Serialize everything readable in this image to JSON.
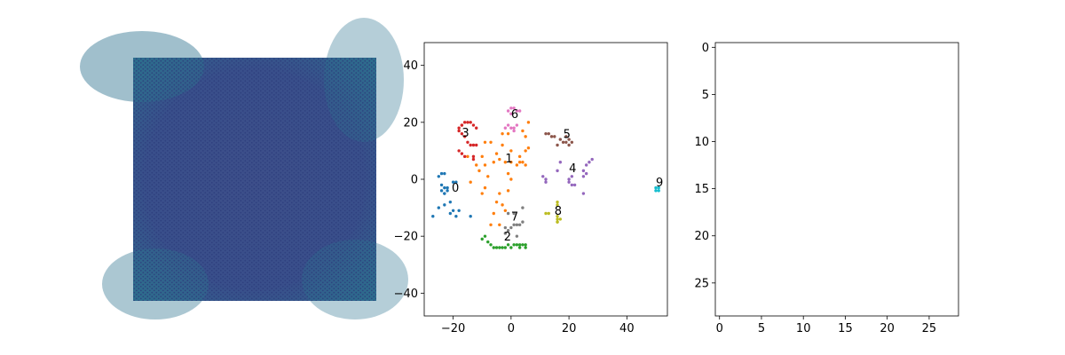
{
  "chart_data": [
    {
      "type": "image",
      "title": "",
      "axis": "off",
      "colormap": [
        "#3b528b",
        "#2c728e",
        "#21918c"
      ]
    },
    {
      "type": "scatter",
      "title": "",
      "xlabel": "",
      "ylabel": "",
      "xlim": [
        -30,
        54
      ],
      "ylim": [
        -48,
        48
      ],
      "xticks": [
        -20,
        0,
        20,
        40
      ],
      "yticks": [
        -40,
        -20,
        0,
        20,
        40
      ],
      "tick_labels_x": [
        "−20",
        "0",
        "20",
        "40"
      ],
      "tick_labels_y": [
        "−40",
        "−20",
        "0",
        "20",
        "40"
      ],
      "grid": false,
      "legend": "none",
      "series": [
        {
          "label": "0",
          "color": "#1f77b4",
          "label_pos": [
            -20.5,
            -4.3
          ],
          "points": [
            [
              -23,
              -3
            ],
            [
              -24,
              -2
            ],
            [
              -23,
              -5
            ],
            [
              -22,
              -4
            ],
            [
              -24,
              -4
            ],
            [
              -23,
              2
            ],
            [
              -25,
              1
            ],
            [
              -24,
              2
            ],
            [
              -20,
              -1
            ],
            [
              -19,
              -1
            ],
            [
              -21,
              -8
            ],
            [
              -20,
              -11
            ],
            [
              -21,
              -12
            ],
            [
              -19,
              -13
            ],
            [
              -18,
              -11
            ],
            [
              -23,
              -9
            ],
            [
              -25,
              -10
            ],
            [
              -27,
              -13
            ],
            [
              -14,
              -13
            ],
            [
              -23,
              -5
            ],
            [
              -22,
              -3
            ]
          ]
        },
        {
          "label": "1",
          "color": "#ff7f0e",
          "label_pos": [
            -2,
            6
          ],
          "points": [
            [
              0,
              6
            ],
            [
              2,
              5
            ],
            [
              4,
              6
            ],
            [
              5,
              5
            ],
            [
              3,
              6
            ],
            [
              -2,
              6
            ],
            [
              -4,
              7
            ],
            [
              -6,
              6
            ],
            [
              -9,
              5
            ],
            [
              -12,
              5
            ],
            [
              -10,
              8
            ],
            [
              -7,
              13
            ],
            [
              -3,
              12
            ],
            [
              -5,
              9
            ],
            [
              0,
              10
            ],
            [
              3,
              8
            ],
            [
              5,
              10
            ],
            [
              6,
              11
            ],
            [
              4,
              17
            ],
            [
              6,
              20
            ],
            [
              5,
              15
            ],
            [
              -1,
              16
            ],
            [
              -3,
              16
            ],
            [
              -9,
              13
            ],
            [
              -15,
              8
            ],
            [
              -11,
              3
            ],
            [
              -8,
              1
            ],
            [
              -1,
              2
            ],
            [
              0,
              0
            ],
            [
              -4,
              -5
            ],
            [
              -9,
              -3
            ],
            [
              -10,
              -5
            ],
            [
              -14,
              -1
            ],
            [
              -5,
              -8
            ],
            [
              -2,
              -11
            ],
            [
              -6,
              -12
            ],
            [
              -4,
              -16
            ],
            [
              -7,
              -16
            ],
            [
              -1,
              -4
            ],
            [
              -3,
              -9
            ]
          ]
        },
        {
          "label": "2",
          "color": "#2ca02c",
          "label_pos": [
            -2.5,
            -21.5
          ],
          "points": [
            [
              -9,
              -20
            ],
            [
              -10,
              -21
            ],
            [
              -8,
              -22
            ],
            [
              -7,
              -23
            ],
            [
              -5,
              -24
            ],
            [
              -4,
              -24
            ],
            [
              -3,
              -24
            ],
            [
              -1,
              -23
            ],
            [
              1,
              -23
            ],
            [
              2,
              -23
            ],
            [
              3,
              -24
            ],
            [
              4,
              -23
            ],
            [
              5,
              -23
            ],
            [
              5,
              -24
            ],
            [
              -2,
              -24
            ],
            [
              0,
              -24
            ],
            [
              -6,
              -24
            ],
            [
              3,
              -23
            ]
          ]
        },
        {
          "label": "3",
          "color": "#d62728",
          "label_pos": [
            -17,
            15
          ],
          "points": [
            [
              -17,
              19
            ],
            [
              -16,
              20
            ],
            [
              -14,
              20
            ],
            [
              -13,
              19
            ],
            [
              -18,
              18
            ],
            [
              -17,
              16
            ],
            [
              -16,
              15
            ],
            [
              -15,
              13
            ],
            [
              -14,
              12
            ],
            [
              -13,
              12
            ],
            [
              -12,
              12
            ],
            [
              -18,
              10
            ],
            [
              -17,
              9
            ],
            [
              -16,
              8
            ],
            [
              -13,
              8
            ],
            [
              -13,
              7
            ],
            [
              -17,
              19
            ],
            [
              -15,
              20
            ],
            [
              -18,
              17
            ],
            [
              -12,
              18
            ]
          ]
        },
        {
          "label": "4",
          "color": "#9467bd",
          "label_pos": [
            20,
            2.5
          ],
          "points": [
            [
              25,
              3
            ],
            [
              26,
              5
            ],
            [
              27,
              6
            ],
            [
              28,
              7
            ],
            [
              26,
              2
            ],
            [
              25,
              1
            ],
            [
              21,
              1
            ],
            [
              20,
              0
            ],
            [
              20,
              -1
            ],
            [
              21,
              -2
            ],
            [
              11,
              1
            ],
            [
              12,
              0
            ],
            [
              12,
              -1
            ],
            [
              16,
              3
            ],
            [
              17,
              6
            ],
            [
              25,
              -5
            ],
            [
              22,
              -2
            ]
          ]
        },
        {
          "label": "5",
          "color": "#8c564b",
          "label_pos": [
            18,
            14.5
          ],
          "points": [
            [
              12,
              16
            ],
            [
              13,
              16
            ],
            [
              14,
              15
            ],
            [
              15,
              15
            ],
            [
              17,
              14
            ],
            [
              18,
              13
            ],
            [
              19,
              13
            ],
            [
              20,
              12
            ],
            [
              20,
              14
            ],
            [
              19,
              15
            ],
            [
              16,
              12
            ],
            [
              21,
              13
            ]
          ]
        },
        {
          "label": "6",
          "color": "#e377c2",
          "label_pos": [
            0,
            21.5
          ],
          "points": [
            [
              0,
              25
            ],
            [
              1,
              25
            ],
            [
              2,
              24
            ],
            [
              3,
              24
            ],
            [
              -1,
              24
            ],
            [
              0,
              23
            ],
            [
              -1,
              19
            ],
            [
              0,
              18
            ],
            [
              1,
              18
            ],
            [
              -2,
              18
            ],
            [
              1,
              17
            ],
            [
              2,
              19
            ]
          ]
        },
        {
          "label": "7",
          "color": "#7f7f7f",
          "label_pos": [
            0,
            -14.5
          ],
          "points": [
            [
              -2,
              -19
            ],
            [
              -1,
              -18
            ],
            [
              0,
              -17
            ],
            [
              1,
              -16
            ],
            [
              2,
              -16
            ],
            [
              3,
              -16
            ],
            [
              4,
              -15
            ],
            [
              -1,
              -12
            ],
            [
              1,
              -12
            ],
            [
              4,
              -10
            ],
            [
              -2,
              -17
            ],
            [
              2,
              -20
            ]
          ]
        },
        {
          "label": "8",
          "color": "#bcbd22",
          "label_pos": [
            15,
            -12.5
          ],
          "points": [
            [
              16,
              -13
            ],
            [
              16,
              -14
            ],
            [
              16,
              -15
            ],
            [
              17,
              -14
            ],
            [
              16,
              -8
            ],
            [
              16,
              -9
            ],
            [
              13,
              -12
            ],
            [
              12,
              -12
            ],
            [
              16,
              -15
            ]
          ]
        },
        {
          "label": "9",
          "color": "#17becf",
          "label_pos": [
            50,
            -2.5
          ],
          "points": [
            [
              50,
              -4
            ],
            [
              51,
              -3
            ],
            [
              51,
              -4
            ],
            [
              50,
              -3
            ]
          ]
        }
      ]
    },
    {
      "type": "image",
      "title": "",
      "xlim": [
        -0.5,
        28.5
      ],
      "ylim": [
        28.5,
        -0.5
      ],
      "xticks": [
        0,
        5,
        10,
        15,
        20,
        25
      ],
      "yticks": [
        0,
        5,
        10,
        15,
        20,
        25
      ],
      "tick_labels_x": [
        "0",
        "5",
        "10",
        "15",
        "20",
        "25"
      ],
      "tick_labels_y": [
        "0",
        "5",
        "10",
        "15",
        "20",
        "25"
      ],
      "content": "empty"
    }
  ]
}
